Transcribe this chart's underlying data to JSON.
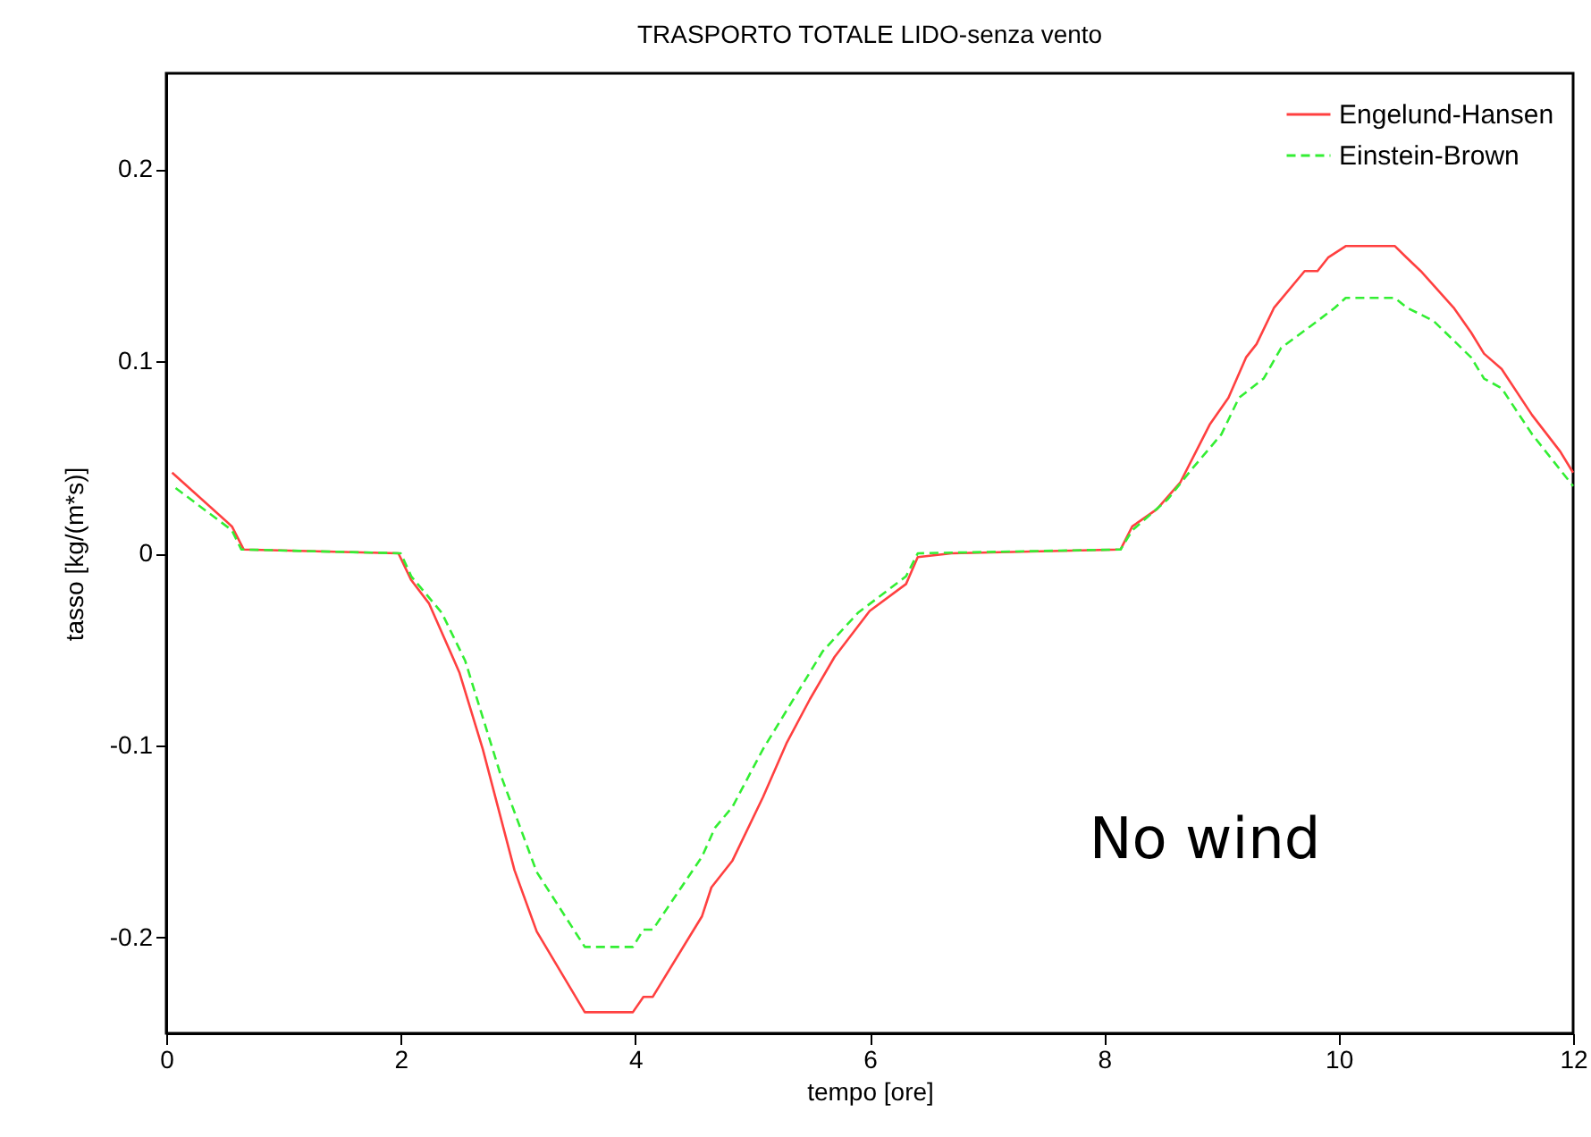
{
  "chart_data": {
    "type": "line",
    "title": "TRASPORTO TOTALE LIDO-senza vento",
    "xlabel": "tempo [ore]",
    "ylabel": "tasso [kg/(m*s)]",
    "xlim": [
      0,
      12
    ],
    "xticks": [
      0,
      2,
      4,
      6,
      8,
      10,
      12
    ],
    "ylim": [
      -0.25,
      0.25
    ],
    "yticks": [
      {
        "value": -0.2,
        "label": "-0.2"
      },
      {
        "value": -0.1,
        "label": "-0.1"
      },
      {
        "value": 0,
        "label": "0"
      },
      {
        "value": 0.1,
        "label": "0.1"
      },
      {
        "value": 0.2,
        "label": "0.2"
      }
    ],
    "grid": false,
    "legend": "top right",
    "annotations": [
      "No wind"
    ],
    "series": [
      {
        "name": "Engelund-Hansen",
        "color": "#ff4040",
        "line_style": "solid",
        "x": [
          0.05,
          0.56,
          0.66,
          1.98,
          2.09,
          2.24,
          2.5,
          2.7,
          2.97,
          3.16,
          3.57,
          3.98,
          4.07,
          4.15,
          4.57,
          4.65,
          4.83,
          5.09,
          5.29,
          5.49,
          5.7,
          6.0,
          6.31,
          6.41,
          6.7,
          8.14,
          8.24,
          8.45,
          8.65,
          8.9,
          9.06,
          9.21,
          9.3,
          9.45,
          9.71,
          9.82,
          9.91,
          10.06,
          10.48,
          10.58,
          10.7,
          10.98,
          11.13,
          11.24,
          11.39,
          11.65,
          11.89,
          12.0
        ],
        "values": [
          0.042,
          0.014,
          0.002,
          0,
          -0.014,
          -0.026,
          -0.062,
          -0.102,
          -0.165,
          -0.197,
          -0.239,
          -0.239,
          -0.231,
          -0.231,
          -0.189,
          -0.174,
          -0.16,
          -0.127,
          -0.099,
          -0.076,
          -0.054,
          -0.03,
          -0.016,
          -0.002,
          0,
          0.002,
          0.014,
          0.023,
          0.037,
          0.067,
          0.081,
          0.102,
          0.109,
          0.128,
          0.147,
          0.147,
          0.154,
          0.16,
          0.16,
          0.154,
          0.147,
          0.128,
          0.115,
          0.104,
          0.096,
          0.072,
          0.053,
          0.042
        ]
      },
      {
        "name": "Einstein-Brown",
        "color": "#33ee33",
        "line_style": "dashed",
        "x": [
          0.08,
          0.56,
          0.64,
          2.0,
          2.09,
          2.35,
          2.55,
          2.85,
          3.16,
          3.57,
          3.98,
          4.07,
          4.15,
          4.57,
          4.68,
          4.83,
          5.09,
          5.34,
          5.6,
          5.9,
          6.31,
          6.41,
          8.14,
          8.24,
          8.54,
          8.75,
          9.0,
          9.15,
          9.36,
          9.51,
          9.82,
          9.97,
          10.06,
          10.48,
          10.58,
          10.81,
          11.13,
          11.24,
          11.39,
          11.65,
          12.0
        ],
        "values": [
          0.034,
          0.012,
          0.002,
          0,
          -0.012,
          -0.031,
          -0.056,
          -0.115,
          -0.166,
          -0.205,
          -0.205,
          -0.196,
          -0.196,
          -0.158,
          -0.143,
          -0.132,
          -0.102,
          -0.077,
          -0.051,
          -0.031,
          -0.012,
          0,
          0.002,
          0.012,
          0.028,
          0.044,
          0.062,
          0.081,
          0.091,
          0.107,
          0.121,
          0.128,
          0.133,
          0.133,
          0.128,
          0.121,
          0.102,
          0.091,
          0.086,
          0.062,
          0.035
        ]
      }
    ]
  }
}
